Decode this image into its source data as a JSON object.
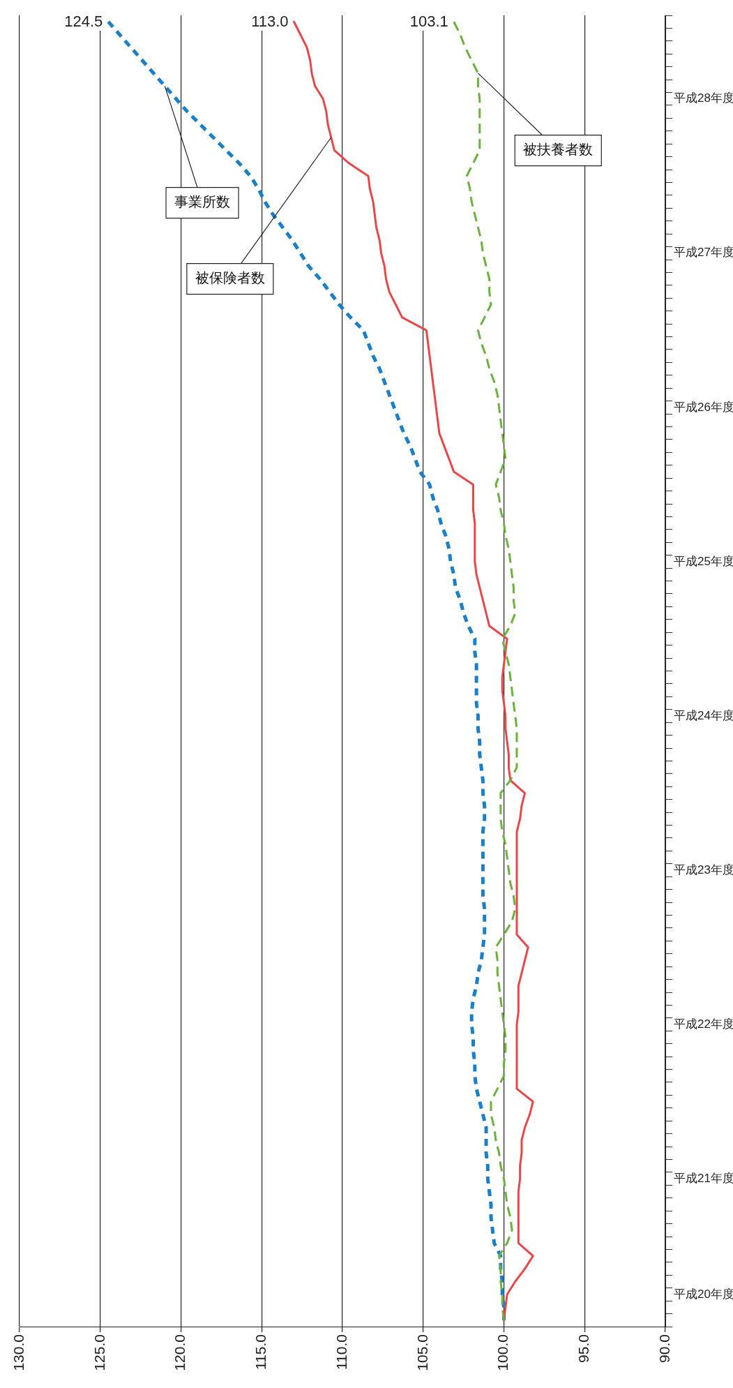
{
  "chart_data": {
    "type": "line",
    "orientation": "horizontal",
    "grid": "x",
    "legend": false,
    "marker": "none",
    "xlim": [
      130,
      90
    ],
    "xticks": [
      {
        "value": 130,
        "label": "130.0"
      },
      {
        "value": 125,
        "label": "125.0"
      },
      {
        "value": 120,
        "label": "120.0"
      },
      {
        "value": 115,
        "label": "115.0"
      },
      {
        "value": 110,
        "label": "110.0"
      },
      {
        "value": 105,
        "label": "105.0"
      },
      {
        "value": 100,
        "label": "100.0"
      },
      {
        "value": 95,
        "label": "95.0"
      },
      {
        "value": 90,
        "label": "90.0"
      }
    ],
    "categories": [
      null,
      null,
      null,
      null,
      null,
      null,
      "平成28年度",
      null,
      null,
      null,
      null,
      null,
      null,
      null,
      null,
      null,
      null,
      null,
      "平成27年度",
      null,
      null,
      null,
      null,
      null,
      null,
      null,
      null,
      null,
      null,
      null,
      "平成26年度",
      null,
      null,
      null,
      null,
      null,
      null,
      null,
      null,
      null,
      null,
      null,
      "平成25年度",
      null,
      null,
      null,
      null,
      null,
      null,
      null,
      null,
      null,
      null,
      null,
      "平成24年度",
      null,
      null,
      null,
      null,
      null,
      null,
      null,
      null,
      null,
      null,
      null,
      "平成23年度",
      null,
      null,
      null,
      null,
      null,
      null,
      null,
      null,
      null,
      null,
      null,
      "平成22年度",
      null,
      null,
      null,
      null,
      null,
      null,
      null,
      null,
      null,
      null,
      null,
      "平成21年度",
      null,
      null,
      null,
      null,
      null,
      null,
      null,
      null,
      "平成20年度",
      null,
      null
    ],
    "series": [
      {
        "name": "事業所数",
        "color": "#1a7fc8",
        "line_style": "dotted",
        "values": [
          124.5,
          123.8,
          123.1,
          122.4,
          121.7,
          121.0,
          120.3,
          119.6,
          118.8,
          118.0,
          117.2,
          116.4,
          115.7,
          115.2,
          114.8,
          114.3,
          113.7,
          113.1,
          112.6,
          112.1,
          111.4,
          110.8,
          110.2,
          109.5,
          108.7,
          108.4,
          108.1,
          107.7,
          107.4,
          107.1,
          106.8,
          106.5,
          106.2,
          105.8,
          105.5,
          105.2,
          104.6,
          104.4,
          104.1,
          103.9,
          103.6,
          103.4,
          103.3,
          103.1,
          103.0,
          102.7,
          102.5,
          102.2,
          101.8,
          101.8,
          101.7,
          101.7,
          101.7,
          101.7,
          101.6,
          101.6,
          101.5,
          101.5,
          101.4,
          101.3,
          101.3,
          101.2,
          101.2,
          101.3,
          101.3,
          101.3,
          101.3,
          101.3,
          101.3,
          101.2,
          101.2,
          101.2,
          101.3,
          101.4,
          101.6,
          101.7,
          101.9,
          102.0,
          102.0,
          101.9,
          101.9,
          101.8,
          101.8,
          101.7,
          101.5,
          101.3,
          101.1,
          101.1,
          101.1,
          101.0,
          101.0,
          100.9,
          100.8,
          100.8,
          100.7,
          100.6,
          100.2,
          100.2,
          100.1,
          100.1,
          100.0,
          100.0
        ]
      },
      {
        "name": "被保険者数",
        "color": "#e8474a",
        "line_style": "solid",
        "values": [
          113.0,
          112.6,
          112.2,
          112.0,
          111.9,
          111.7,
          111.2,
          111.0,
          110.9,
          110.7,
          110.5,
          109.6,
          108.4,
          108.3,
          108.1,
          108.0,
          107.9,
          107.7,
          107.6,
          107.4,
          107.3,
          107.1,
          106.7,
          106.3,
          104.8,
          104.7,
          104.6,
          104.5,
          104.4,
          104.3,
          104.2,
          104.1,
          104.0,
          103.7,
          103.4,
          103.1,
          101.9,
          101.9,
          101.9,
          101.8,
          101.8,
          101.8,
          101.8,
          101.7,
          101.5,
          101.3,
          101.1,
          100.9,
          99.8,
          99.9,
          100.0,
          100.1,
          100.1,
          100.0,
          99.9,
          99.9,
          99.8,
          99.7,
          99.7,
          99.6,
          98.7,
          98.9,
          99.0,
          99.2,
          99.2,
          99.2,
          99.2,
          99.2,
          99.2,
          99.2,
          99.2,
          99.2,
          98.5,
          98.7,
          98.9,
          99.1,
          99.1,
          99.1,
          99.2,
          99.2,
          99.2,
          99.2,
          99.2,
          99.2,
          98.2,
          98.4,
          98.7,
          98.9,
          98.9,
          99.0,
          99.0,
          99.1,
          99.1,
          99.1,
          99.1,
          99.1,
          98.2,
          98.7,
          99.3,
          99.8,
          99.9,
          100.0
        ]
      },
      {
        "name": "被扶養者数",
        "color": "#6ab23c",
        "line_style": "dashed",
        "values": [
          103.1,
          102.7,
          102.4,
          102.0,
          101.6,
          101.6,
          101.5,
          101.5,
          101.5,
          101.5,
          101.5,
          101.9,
          102.3,
          102.1,
          102.0,
          101.8,
          101.6,
          101.4,
          101.3,
          101.1,
          100.9,
          100.9,
          100.8,
          101.2,
          101.6,
          101.4,
          101.1,
          100.9,
          100.6,
          100.4,
          100.3,
          100.2,
          100.1,
          100.0,
          99.9,
          100.2,
          100.5,
          100.3,
          100.2,
          100.0,
          99.9,
          99.7,
          99.6,
          99.5,
          99.4,
          99.4,
          99.3,
          99.6,
          100.1,
          99.9,
          99.7,
          99.6,
          99.5,
          99.4,
          99.3,
          99.2,
          99.2,
          99.2,
          99.2,
          99.6,
          100.2,
          100.2,
          100.2,
          100.1,
          99.9,
          99.8,
          99.7,
          99.6,
          99.4,
          99.3,
          99.5,
          100.0,
          100.5,
          100.4,
          100.4,
          100.3,
          100.2,
          100.1,
          100.0,
          99.9,
          99.9,
          100.0,
          100.0,
          100.4,
          100.8,
          100.8,
          100.6,
          100.5,
          100.3,
          100.2,
          100.0,
          99.9,
          99.8,
          99.6,
          99.5,
          99.8,
          100.3,
          100.2,
          100.2,
          100.1,
          100.1,
          100.0
        ]
      }
    ],
    "annotations": [
      {
        "text": "124.5",
        "x": 124.5
      },
      {
        "text": "113.0",
        "x": 113.0
      },
      {
        "text": "103.1",
        "x": 103.1
      }
    ]
  }
}
